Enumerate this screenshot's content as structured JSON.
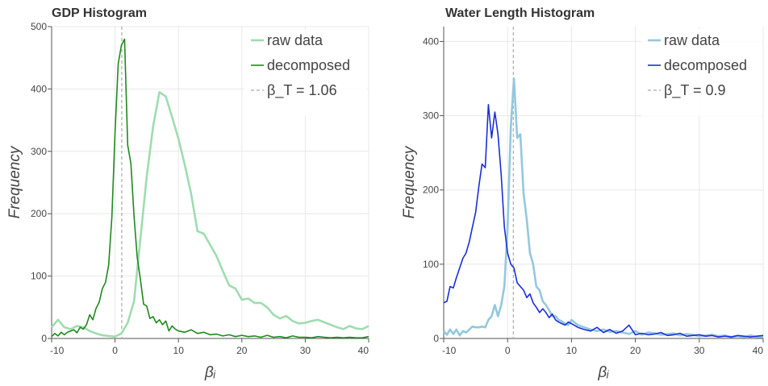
{
  "chart_data": [
    {
      "type": "line",
      "title": "GDP Histogram",
      "xlabel": "βᵢ",
      "ylabel": "Frequency",
      "xlim": [
        -10,
        40
      ],
      "ylim": [
        0,
        500
      ],
      "xticks": [
        -10,
        0,
        10,
        20,
        30,
        40
      ],
      "yticks": [
        0,
        100,
        200,
        300,
        400,
        500
      ],
      "xtick_labels": [
        "-10",
        "0",
        "10",
        "20",
        "30",
        "40"
      ],
      "ytick_labels": [
        "0",
        "100",
        "200",
        "300",
        "400",
        "500"
      ],
      "grid": true,
      "legend_position": "top-right",
      "threshold": {
        "name": "β_T = 1.06",
        "x": 1.06,
        "color": "#aaaaaa"
      },
      "series": [
        {
          "name": "raw data",
          "color": "#9fdcb0",
          "x": [
            -10,
            -9,
            -8,
            -7,
            -6,
            -5,
            -4,
            -3,
            -2,
            -1,
            0,
            1,
            2,
            3,
            4,
            5,
            6,
            7,
            8,
            9,
            10,
            11,
            12,
            13,
            14,
            15,
            16,
            17,
            18,
            19,
            20,
            21,
            22,
            23,
            24,
            25,
            26,
            27,
            28,
            29,
            30,
            31,
            32,
            33,
            34,
            35,
            36,
            37,
            38,
            39,
            40
          ],
          "y": [
            18,
            30,
            18,
            15,
            20,
            18,
            12,
            8,
            5,
            4,
            3,
            8,
            25,
            60,
            160,
            260,
            340,
            395,
            388,
            355,
            320,
            278,
            232,
            172,
            168,
            150,
            132,
            108,
            85,
            80,
            62,
            64,
            57,
            57,
            50,
            38,
            32,
            36,
            28,
            24,
            25,
            28,
            30,
            26,
            22,
            18,
            15,
            20,
            16,
            15,
            20
          ]
        },
        {
          "name": "decomposed",
          "color": "#1e8a1e",
          "x": [
            -10,
            -9.5,
            -9,
            -8.5,
            -8,
            -7.5,
            -7,
            -6.5,
            -6,
            -5.5,
            -5,
            -4.5,
            -4,
            -3.5,
            -3,
            -2.5,
            -2,
            -1.5,
            -1,
            -0.5,
            0,
            0.5,
            1,
            1.5,
            2,
            2.5,
            3,
            3.5,
            4,
            4.5,
            5,
            5.5,
            6,
            6.5,
            7,
            7.5,
            8,
            8.5,
            9,
            9.5,
            10,
            11,
            12,
            13,
            14,
            15,
            16,
            17,
            18,
            19,
            20,
            21,
            22,
            23,
            24,
            25,
            26,
            27,
            28,
            29,
            30,
            31,
            32,
            33,
            34,
            35,
            36,
            37,
            38,
            39,
            40
          ],
          "y": [
            3,
            8,
            4,
            10,
            6,
            10,
            12,
            14,
            9,
            18,
            15,
            22,
            38,
            30,
            48,
            58,
            80,
            90,
            118,
            195,
            330,
            440,
            470,
            480,
            310,
            280,
            195,
            130,
            95,
            55,
            52,
            32,
            35,
            25,
            30,
            22,
            28,
            12,
            20,
            15,
            12,
            10,
            14,
            8,
            10,
            6,
            7,
            4,
            6,
            3,
            5,
            3,
            4,
            2,
            5,
            2,
            3,
            1,
            4,
            2,
            2,
            1,
            3,
            2,
            1,
            2,
            1,
            2,
            1,
            1,
            3
          ]
        }
      ]
    },
    {
      "type": "line",
      "title": "Water Length Histogram",
      "xlabel": "βᵢ",
      "ylabel": "Frequency",
      "xlim": [
        -10,
        40
      ],
      "ylim": [
        0,
        420
      ],
      "xticks": [
        -10,
        0,
        10,
        20,
        30,
        40
      ],
      "yticks": [
        0,
        100,
        200,
        300,
        400
      ],
      "xtick_labels": [
        "-10",
        "0",
        "10",
        "20",
        "30",
        "40"
      ],
      "ytick_labels": [
        "0",
        "100",
        "200",
        "300",
        "400"
      ],
      "grid": true,
      "legend_position": "top-right",
      "threshold": {
        "name": "β_T = 0.9",
        "x": 0.9,
        "color": "#aaaaaa"
      },
      "series": [
        {
          "name": "raw data",
          "color": "#94c8dc",
          "x": [
            -10,
            -9.5,
            -9,
            -8.5,
            -8,
            -7.5,
            -7,
            -6.5,
            -6,
            -5.5,
            -5,
            -4.5,
            -4,
            -3.5,
            -3,
            -2.5,
            -2,
            -1.5,
            -1,
            -0.5,
            0,
            0.5,
            1,
            1.5,
            2,
            2.5,
            3,
            3.5,
            4,
            4.5,
            5,
            5.5,
            6,
            6.5,
            7,
            7.5,
            8,
            8.5,
            9,
            9.5,
            10,
            11,
            12,
            13,
            14,
            15,
            16,
            17,
            18,
            19,
            20,
            21,
            22,
            23,
            24,
            25,
            26,
            27,
            28,
            29,
            30,
            31,
            32,
            33,
            34,
            35,
            36,
            37,
            38,
            39,
            40
          ],
          "y": [
            10,
            5,
            12,
            6,
            12,
            4,
            10,
            8,
            12,
            16,
            15,
            15,
            16,
            15,
            25,
            30,
            45,
            30,
            45,
            70,
            150,
            285,
            350,
            270,
            275,
            195,
            160,
            115,
            100,
            70,
            65,
            50,
            45,
            38,
            30,
            30,
            25,
            23,
            20,
            18,
            25,
            18,
            15,
            12,
            10,
            12,
            9,
            10,
            8,
            6,
            10,
            5,
            8,
            7,
            5,
            6,
            7,
            4,
            6,
            5,
            3,
            4,
            5,
            3,
            4,
            2,
            3,
            2,
            4,
            2,
            2
          ]
        },
        {
          "name": "decomposed",
          "color": "#1a2edc",
          "x": [
            -10,
            -9.5,
            -9,
            -8.5,
            -8,
            -7.5,
            -7,
            -6.5,
            -6,
            -5.5,
            -5,
            -4.5,
            -4,
            -3.5,
            -3,
            -2.5,
            -2,
            -1.5,
            -1,
            -0.5,
            0,
            0.5,
            1,
            1.5,
            2,
            2.5,
            3,
            3.5,
            4,
            4.5,
            5,
            5.5,
            6,
            6.5,
            7,
            7.5,
            8,
            8.5,
            9,
            9.5,
            10,
            11,
            12,
            13,
            14,
            15,
            16,
            17,
            18,
            19,
            20,
            21,
            22,
            23,
            24,
            25,
            26,
            27,
            28,
            29,
            30,
            31,
            32,
            33,
            34,
            35,
            36,
            37,
            38,
            39,
            40
          ],
          "y": [
            48,
            50,
            70,
            68,
            82,
            95,
            108,
            115,
            130,
            150,
            170,
            205,
            235,
            230,
            315,
            270,
            305,
            275,
            220,
            150,
            115,
            100,
            95,
            75,
            70,
            65,
            55,
            60,
            48,
            42,
            35,
            40,
            35,
            28,
            33,
            25,
            22,
            20,
            18,
            22,
            20,
            15,
            12,
            10,
            15,
            8,
            12,
            7,
            10,
            18,
            5,
            7,
            5,
            6,
            8,
            4,
            5,
            7,
            3,
            4,
            5,
            3,
            4,
            2,
            3,
            2,
            4,
            3,
            2,
            3,
            4
          ]
        }
      ]
    }
  ]
}
